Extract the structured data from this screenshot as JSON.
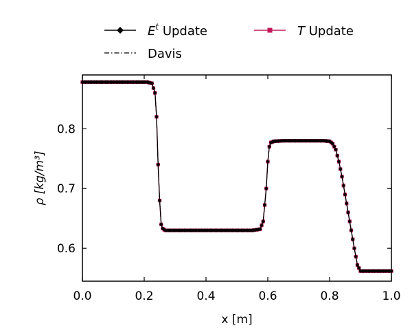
{
  "chart_data": {
    "type": "line",
    "xlabel": "x [m]",
    "ylabel_symbol": "ρ",
    "ylabel_unit": "[kg/m³]",
    "xlim": [
      0.0,
      1.0
    ],
    "ylim": [
      0.545,
      0.89
    ],
    "x_ticks": [
      0.0,
      0.2,
      0.4,
      0.6,
      0.8,
      1.0
    ],
    "x_tick_labels": [
      "0.0",
      "0.2",
      "0.4",
      "0.6",
      "0.8",
      "1.0"
    ],
    "y_ticks": [
      0.6,
      0.7,
      0.8
    ],
    "y_tick_labels": [
      "0.6",
      "0.7",
      "0.8"
    ],
    "grid": false,
    "legend_placement": "top, outside, two columns",
    "series": [
      {
        "legend_prefix": "E",
        "legend_sup": "t",
        "legend_suffix": " Update",
        "color": "#000000",
        "line_style": "solid",
        "marker": "diamond",
        "x": [
          0.0,
          0.21,
          0.225,
          0.235,
          0.24,
          0.245,
          0.25,
          0.255,
          0.26,
          0.265,
          0.27,
          0.3,
          0.55,
          0.575,
          0.585,
          0.595,
          0.6,
          0.605,
          0.61,
          0.62,
          0.65,
          0.78,
          0.8,
          0.81,
          0.82,
          0.83,
          0.84,
          0.85,
          0.86,
          0.87,
          0.88,
          0.89,
          0.9,
          1.0
        ],
        "y": [
          0.878,
          0.878,
          0.876,
          0.86,
          0.82,
          0.74,
          0.68,
          0.64,
          0.633,
          0.631,
          0.63,
          0.63,
          0.63,
          0.632,
          0.645,
          0.7,
          0.745,
          0.77,
          0.777,
          0.779,
          0.78,
          0.78,
          0.779,
          0.775,
          0.765,
          0.745,
          0.72,
          0.69,
          0.66,
          0.63,
          0.6,
          0.572,
          0.562,
          0.562
        ]
      },
      {
        "legend_label": "Davis",
        "color": "#000000",
        "line_style": "dashdot",
        "marker": "none",
        "x": [
          0.0,
          0.21,
          0.225,
          0.235,
          0.24,
          0.245,
          0.25,
          0.255,
          0.26,
          0.265,
          0.27,
          0.3,
          0.55,
          0.575,
          0.585,
          0.595,
          0.6,
          0.605,
          0.61,
          0.62,
          0.65,
          0.78,
          0.8,
          0.81,
          0.82,
          0.83,
          0.84,
          0.85,
          0.86,
          0.87,
          0.88,
          0.89,
          0.9,
          1.0
        ],
        "y": [
          0.878,
          0.878,
          0.876,
          0.86,
          0.82,
          0.74,
          0.68,
          0.64,
          0.633,
          0.631,
          0.63,
          0.63,
          0.63,
          0.632,
          0.645,
          0.7,
          0.745,
          0.77,
          0.777,
          0.779,
          0.78,
          0.78,
          0.779,
          0.775,
          0.765,
          0.745,
          0.72,
          0.69,
          0.66,
          0.63,
          0.6,
          0.572,
          0.562,
          0.562
        ]
      },
      {
        "legend_prefix": "T",
        "legend_suffix": " Update",
        "color": "#c2185b",
        "line_style": "solid",
        "marker": "square",
        "x": [
          0.0,
          0.21,
          0.225,
          0.235,
          0.24,
          0.245,
          0.25,
          0.255,
          0.26,
          0.265,
          0.27,
          0.3,
          0.55,
          0.575,
          0.585,
          0.595,
          0.6,
          0.605,
          0.61,
          0.62,
          0.65,
          0.78,
          0.8,
          0.81,
          0.82,
          0.83,
          0.84,
          0.85,
          0.86,
          0.87,
          0.88,
          0.89,
          0.9,
          1.0
        ],
        "y": [
          0.878,
          0.878,
          0.876,
          0.86,
          0.82,
          0.74,
          0.68,
          0.64,
          0.633,
          0.631,
          0.63,
          0.63,
          0.63,
          0.632,
          0.645,
          0.7,
          0.745,
          0.77,
          0.777,
          0.779,
          0.78,
          0.78,
          0.779,
          0.775,
          0.765,
          0.745,
          0.72,
          0.69,
          0.66,
          0.63,
          0.6,
          0.572,
          0.562,
          0.562
        ]
      }
    ]
  }
}
